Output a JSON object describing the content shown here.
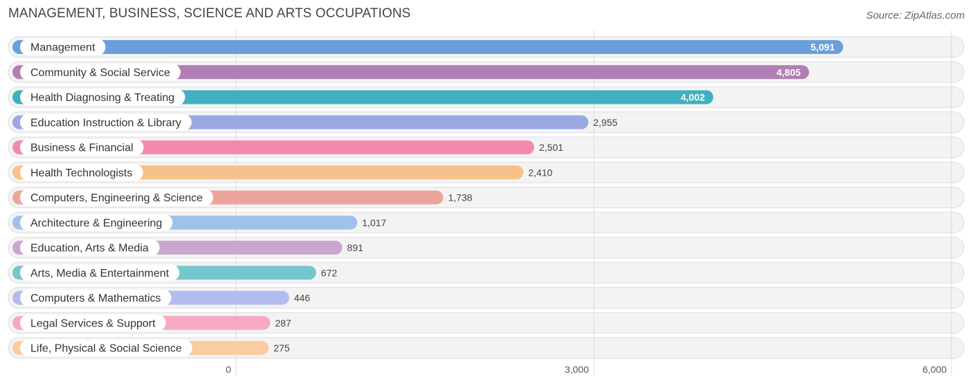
{
  "title": "MANAGEMENT, BUSINESS, SCIENCE AND ARTS OCCUPATIONS",
  "source": "Source: ZipAtlas.com",
  "chart_data": {
    "type": "bar",
    "orientation": "horizontal",
    "title": "MANAGEMENT, BUSINESS, SCIENCE AND ARTS OCCUPATIONS",
    "xlim": [
      0,
      6000
    ],
    "xticks": [
      {
        "value": 0,
        "label": "0"
      },
      {
        "value": 3000,
        "label": "3,000"
      },
      {
        "value": 6000,
        "label": "6,000"
      }
    ],
    "grid": true,
    "categories": [
      "Management",
      "Community & Social Service",
      "Health Diagnosing & Treating",
      "Education Instruction & Library",
      "Business & Financial",
      "Health Technologists",
      "Computers, Engineering & Science",
      "Architecture & Engineering",
      "Education, Arts & Media",
      "Arts, Media & Entertainment",
      "Computers & Mathematics",
      "Legal Services & Support",
      "Life, Physical & Social Science"
    ],
    "values": [
      5091,
      4805,
      4002,
      2955,
      2501,
      2410,
      1738,
      1017,
      891,
      672,
      446,
      287,
      275
    ],
    "value_labels": [
      "5,091",
      "4,805",
      "4,002",
      "2,955",
      "2,501",
      "2,410",
      "1,738",
      "1,017",
      "891",
      "672",
      "446",
      "287",
      "275"
    ],
    "colors": [
      "#6a9fdc",
      "#b07fb6",
      "#3fb0c0",
      "#9ba8e4",
      "#f38aae",
      "#f8c08a",
      "#eda49c",
      "#9fc2ea",
      "#c8a8cd",
      "#74c7cd",
      "#b4bbee",
      "#f7a9c4",
      "#fbcc9f"
    ]
  }
}
